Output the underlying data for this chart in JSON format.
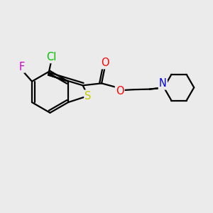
{
  "background_color": "#ebebeb",
  "bond_color": "#000000",
  "bond_width": 1.6,
  "atom_colors": {
    "S": "#c8c800",
    "O": "#ff0000",
    "N": "#0000ee",
    "Cl": "#00bb00",
    "F": "#cc00cc"
  },
  "font_size": 10.5
}
